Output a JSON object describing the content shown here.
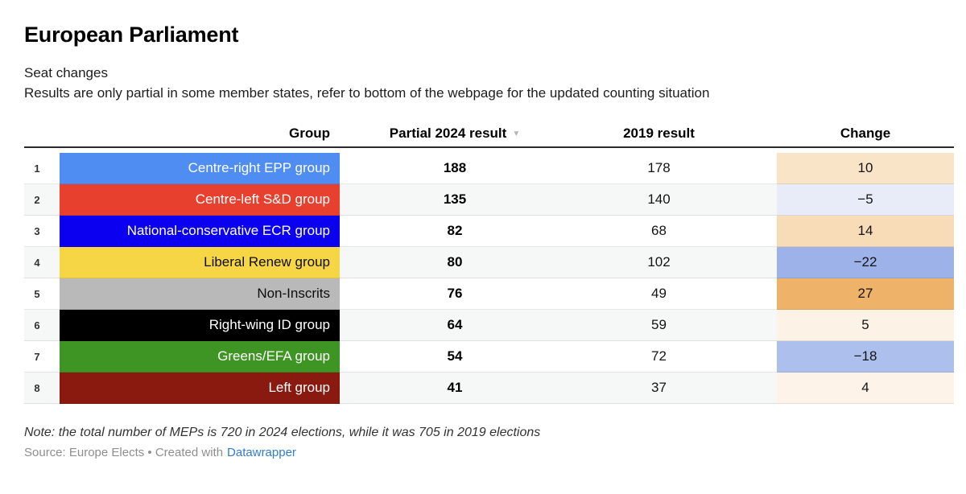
{
  "title": "European Parliament",
  "description": {
    "line1": "Seat changes",
    "line2": "Results are only partial in some member states, refer to bottom of the webpage for the updated counting situation"
  },
  "table": {
    "columns": {
      "group": "Group",
      "partial": "Partial 2024 result",
      "result2019": "2019 result",
      "change": "Change"
    },
    "sort_icon": "▼",
    "rows": [
      {
        "index": "1",
        "group": "Centre-right EPP group",
        "group_bg": "#4f8df3",
        "group_text": "#ffffff",
        "partial": "188",
        "result2019": "178",
        "change": "10",
        "change_bg": "#fae4c8"
      },
      {
        "index": "2",
        "group": "Centre-left S&D group",
        "group_bg": "#e8402e",
        "group_text": "#ffffff",
        "partial": "135",
        "result2019": "140",
        "change": "−5",
        "change_bg": "#e8ecf8"
      },
      {
        "index": "3",
        "group": "National-conservative ECR group",
        "group_bg": "#0b00f0",
        "group_text": "#ffffff",
        "partial": "82",
        "result2019": "68",
        "change": "14",
        "change_bg": "#f8dcb8"
      },
      {
        "index": "4",
        "group": "Liberal Renew group",
        "group_bg": "#f6d645",
        "group_text": "#0d0d0d",
        "partial": "80",
        "result2019": "102",
        "change": "−22",
        "change_bg": "#9cb2e8"
      },
      {
        "index": "5",
        "group": "Non-Inscrits",
        "group_bg": "#b9b9b9",
        "group_text": "#0d0d0d",
        "partial": "76",
        "result2019": "49",
        "change": "27",
        "change_bg": "#eeb269"
      },
      {
        "index": "6",
        "group": "Right-wing ID group",
        "group_bg": "#000000",
        "group_text": "#ffffff",
        "partial": "64",
        "result2019": "59",
        "change": "5",
        "change_bg": "#fdf2e6"
      },
      {
        "index": "7",
        "group": "Greens/EFA group",
        "group_bg": "#3f9524",
        "group_text": "#ffffff",
        "partial": "54",
        "result2019": "72",
        "change": "−18",
        "change_bg": "#adbfec"
      },
      {
        "index": "8",
        "group": "Left group",
        "group_bg": "#8a1a10",
        "group_text": "#ffffff",
        "partial": "41",
        "result2019": "37",
        "change": "4",
        "change_bg": "#fdf3e9"
      }
    ]
  },
  "footer": {
    "note": "Note: the total number of MEPs is 720 in 2024 elections, while it was 705 in 2019 elections",
    "source_prefix": "Source: Europe Elects • Created with",
    "source_link": "Datawrapper"
  },
  "chart_data": {
    "type": "table",
    "title": "European Parliament",
    "subtitle": "Seat changes",
    "description": "Results are only partial in some member states, refer to bottom of the webpage for the updated counting situation",
    "columns": [
      "Group",
      "Partial 2024 result",
      "2019 result",
      "Change"
    ],
    "sorted_by": "Partial 2024 result",
    "sort_direction": "descending",
    "rows": [
      {
        "group": "Centre-right EPP group",
        "partial_2024": 188,
        "result_2019": 178,
        "change": 10,
        "color": "#4f8df3"
      },
      {
        "group": "Centre-left S&D group",
        "partial_2024": 135,
        "result_2019": 140,
        "change": -5,
        "color": "#e8402e"
      },
      {
        "group": "National-conservative ECR group",
        "partial_2024": 82,
        "result_2019": 68,
        "change": 14,
        "color": "#0b00f0"
      },
      {
        "group": "Liberal Renew group",
        "partial_2024": 80,
        "result_2019": 102,
        "change": -22,
        "color": "#f6d645"
      },
      {
        "group": "Non-Inscrits",
        "partial_2024": 76,
        "result_2019": 49,
        "change": 27,
        "color": "#b9b9b9"
      },
      {
        "group": "Right-wing ID group",
        "partial_2024": 64,
        "result_2019": 59,
        "change": 5,
        "color": "#000000"
      },
      {
        "group": "Greens/EFA group",
        "partial_2024": 54,
        "result_2019": 72,
        "change": -18,
        "color": "#3f9524"
      },
      {
        "group": "Left group",
        "partial_2024": 41,
        "result_2019": 37,
        "change": 4,
        "color": "#8a1a10"
      }
    ],
    "note": "Note: the total number of MEPs is 720 in 2024 elections, while it was 705 in 2019 elections",
    "source": "Europe Elects",
    "created_with": "Datawrapper",
    "change_colorscale": {
      "positive": "#eeb269",
      "negative": "#9cb2e8",
      "neutral": "#ffffff"
    }
  }
}
